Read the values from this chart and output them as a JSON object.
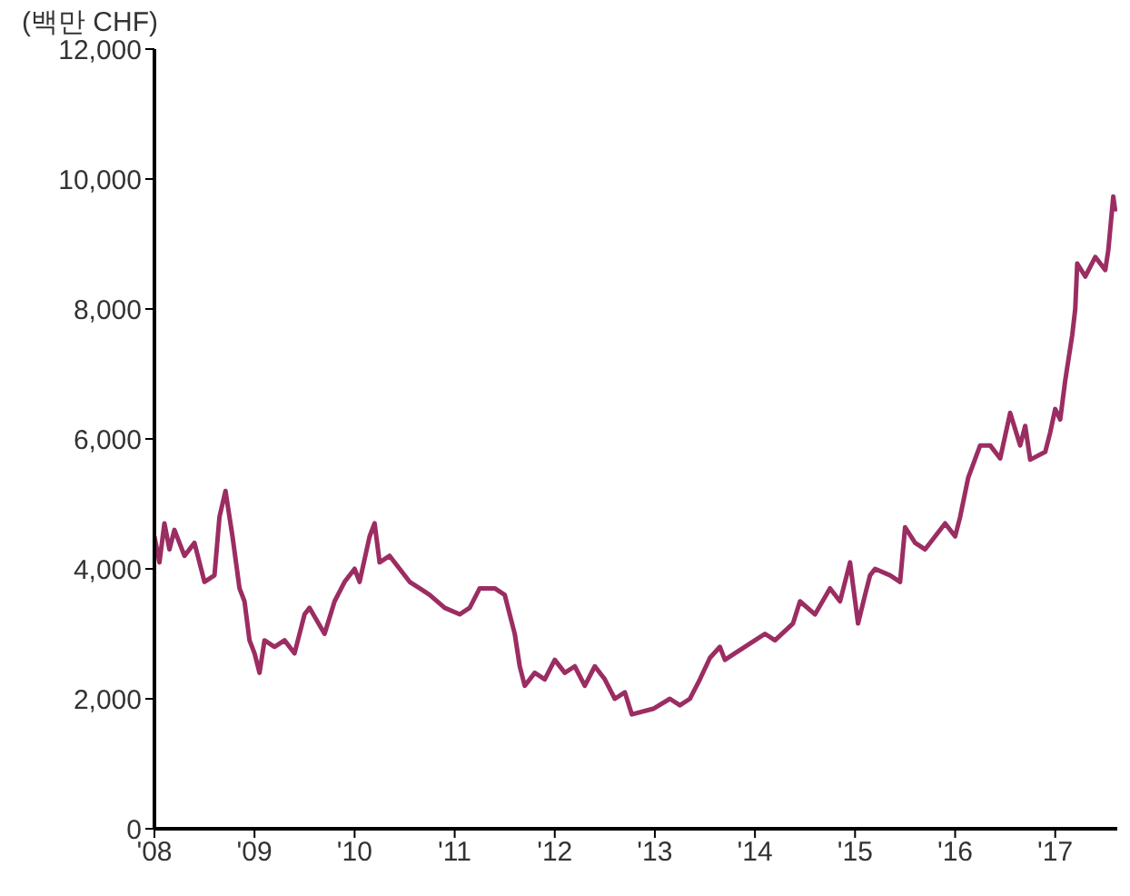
{
  "chart_data": {
    "type": "line",
    "ylabel": "(백만 CHF)",
    "x": [
      2008.0,
      2008.05,
      2008.1,
      2008.15,
      2008.2,
      2008.3,
      2008.4,
      2008.5,
      2008.6,
      2008.65,
      2008.71,
      2008.78,
      2008.85,
      2008.9,
      2008.95,
      2009.0,
      2009.05,
      2009.1,
      2009.2,
      2009.3,
      2009.4,
      2009.5,
      2009.55,
      2009.7,
      2009.8,
      2009.9,
      2010.0,
      2010.05,
      2010.15,
      2010.2,
      2010.25,
      2010.35,
      2010.45,
      2010.55,
      2010.65,
      2010.75,
      2010.9,
      2011.05,
      2011.15,
      2011.25,
      2011.4,
      2011.5,
      2011.55,
      2011.6,
      2011.65,
      2011.7,
      2011.8,
      2011.9,
      2012.0,
      2012.1,
      2012.2,
      2012.3,
      2012.4,
      2012.5,
      2012.6,
      2012.7,
      2012.77,
      2012.99,
      2013.15,
      2013.25,
      2013.35,
      2013.45,
      2013.55,
      2013.65,
      2013.7,
      2013.8,
      2014.0,
      2014.1,
      2014.2,
      2014.38,
      2014.45,
      2014.6,
      2014.75,
      2014.85,
      2014.95,
      2015.03,
      2015.1,
      2015.15,
      2015.2,
      2015.35,
      2015.45,
      2015.5,
      2015.6,
      2015.7,
      2015.8,
      2015.9,
      2016.0,
      2016.05,
      2016.13,
      2016.25,
      2016.35,
      2016.45,
      2016.55,
      2016.65,
      2016.7,
      2016.75,
      2016.9,
      2016.95,
      2017.0,
      2017.05,
      2017.1,
      2017.17,
      2017.2,
      2017.22,
      2017.3,
      2017.4,
      2017.5,
      2017.53,
      2017.58,
      2017.6
    ],
    "series": [
      {
        "color": "#9b2d62",
        "values": [
          4500,
          4100,
          4700,
          4300,
          4600,
          4200,
          4400,
          3800,
          3900,
          4800,
          5200,
          4500,
          3700,
          3500,
          2900,
          2700,
          2400,
          2900,
          2800,
          2900,
          2700,
          3300,
          3400,
          3000,
          3500,
          3800,
          4000,
          3800,
          4500,
          4700,
          4100,
          4200,
          4000,
          3800,
          3700,
          3600,
          3400,
          3300,
          3400,
          3700,
          3700,
          3600,
          3300,
          3000,
          2500,
          2200,
          2400,
          2300,
          2600,
          2400,
          2500,
          2200,
          2500,
          2300,
          2000,
          2100,
          1760,
          1850,
          2000,
          1900,
          2000,
          2300,
          2630,
          2800,
          2600,
          2700,
          2900,
          3000,
          2900,
          3160,
          3500,
          3300,
          3700,
          3500,
          4100,
          3160,
          3600,
          3900,
          4000,
          3900,
          3800,
          4640,
          4400,
          4300,
          4500,
          4700,
          4500,
          4800,
          5400,
          5900,
          5900,
          5700,
          6400,
          5900,
          6200,
          5680,
          5800,
          6100,
          6460,
          6300,
          6900,
          7600,
          8000,
          8700,
          8500,
          8800,
          8600,
          8900,
          9730,
          9500
        ]
      }
    ],
    "xlim": [
      2008,
      2017.62
    ],
    "xticks": [
      {
        "value": 2008,
        "label": "'08"
      },
      {
        "value": 2009,
        "label": "'09"
      },
      {
        "value": 2010,
        "label": "'10"
      },
      {
        "value": 2011,
        "label": "'11"
      },
      {
        "value": 2012,
        "label": "'12"
      },
      {
        "value": 2013,
        "label": "'13"
      },
      {
        "value": 2014,
        "label": "'14"
      },
      {
        "value": 2015,
        "label": "'15"
      },
      {
        "value": 2016,
        "label": "'16"
      },
      {
        "value": 2017,
        "label": "'17"
      }
    ],
    "ylim": [
      0,
      12000
    ],
    "yticks": [
      0,
      {
        "value": 2000,
        "label": "2,000"
      },
      {
        "value": 4000,
        "label": "4,000"
      },
      {
        "value": 6000,
        "label": "6,000"
      },
      {
        "value": 8000,
        "label": "8,000"
      },
      {
        "value": 10000,
        "label": "10,000"
      },
      {
        "value": 12000,
        "label": "12,000"
      }
    ],
    "grid": false,
    "legend": false,
    "marker": "none",
    "line_style": "solid"
  }
}
